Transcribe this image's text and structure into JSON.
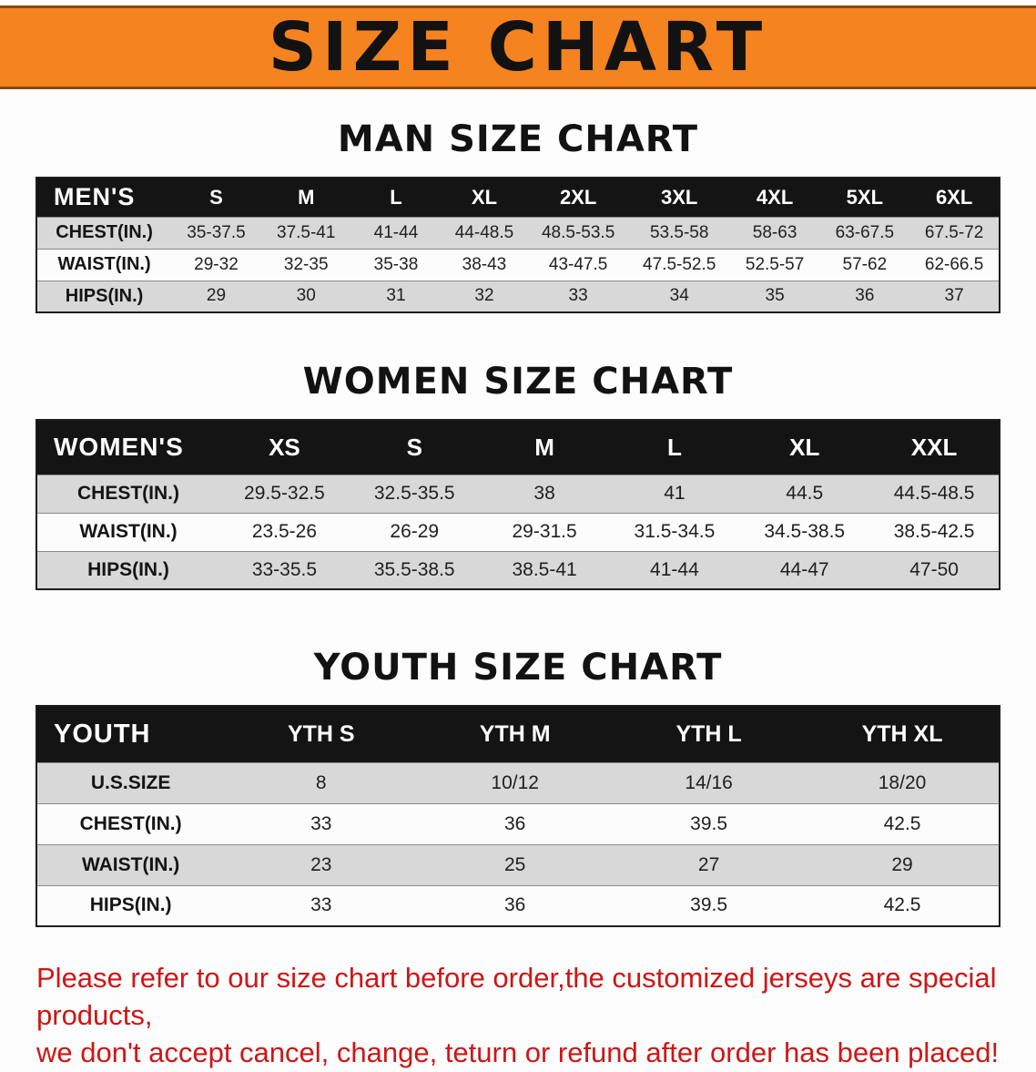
{
  "banner": {
    "title": "SIZE CHART"
  },
  "colors": {
    "banner_background": "#f5831f",
    "table_header_background": "#141414",
    "row_shaded": "#d8d8d8",
    "notice_text": "#ce1616"
  },
  "sections": [
    {
      "heading": "MAN SIZE CHART",
      "table": {
        "header": [
          "MEN'S",
          "S",
          "M",
          "L",
          "XL",
          "2XL",
          "3XL",
          "4XL",
          "5XL",
          "6XL"
        ],
        "rows": [
          {
            "label": "CHEST(IN.)",
            "values": [
              "35-37.5",
              "37.5-41",
              "41-44",
              "44-48.5",
              "48.5-53.5",
              "53.5-58",
              "58-63",
              "63-67.5",
              "67.5-72"
            ]
          },
          {
            "label": "WAIST(IN.)",
            "values": [
              "29-32",
              "32-35",
              "35-38",
              "38-43",
              "43-47.5",
              "47.5-52.5",
              "52.5-57",
              "57-62",
              "62-66.5"
            ]
          },
          {
            "label": "HIPS(IN.)",
            "values": [
              "29",
              "30",
              "31",
              "32",
              "33",
              "34",
              "35",
              "36",
              "37"
            ]
          }
        ]
      }
    },
    {
      "heading": "WOMEN SIZE CHART",
      "table": {
        "header": [
          "WOMEN'S",
          "XS",
          "S",
          "M",
          "L",
          "XL",
          "XXL"
        ],
        "rows": [
          {
            "label": "CHEST(IN.)",
            "values": [
              "29.5-32.5",
              "32.5-35.5",
              "38",
              "41",
              "44.5",
              "44.5-48.5"
            ]
          },
          {
            "label": "WAIST(IN.)",
            "values": [
              "23.5-26",
              "26-29",
              "29-31.5",
              "31.5-34.5",
              "34.5-38.5",
              "38.5-42.5"
            ]
          },
          {
            "label": "HIPS(IN.)",
            "values": [
              "33-35.5",
              "35.5-38.5",
              "38.5-41",
              "41-44",
              "44-47",
              "47-50"
            ]
          }
        ]
      }
    },
    {
      "heading": "YOUTH SIZE CHART",
      "table": {
        "header": [
          "YOUTH",
          "YTH S",
          "YTH M",
          "YTH L",
          "YTH XL"
        ],
        "rows": [
          {
            "label": "U.S.SIZE",
            "values": [
              "8",
              "10/12",
              "14/16",
              "18/20"
            ]
          },
          {
            "label": "CHEST(IN.)",
            "values": [
              "33",
              "36",
              "39.5",
              "42.5"
            ]
          },
          {
            "label": "WAIST(IN.)",
            "values": [
              "23",
              "25",
              "27",
              "29"
            ]
          },
          {
            "label": "HIPS(IN.)",
            "values": [
              "33",
              "36",
              "39.5",
              "42.5"
            ]
          }
        ]
      }
    }
  ],
  "footer": {
    "lines": [
      "Please refer to our size chart before order,the customized jerseys are special products,",
      "we don't accept cancel, change, teturn or refund after order has been placed!"
    ]
  }
}
